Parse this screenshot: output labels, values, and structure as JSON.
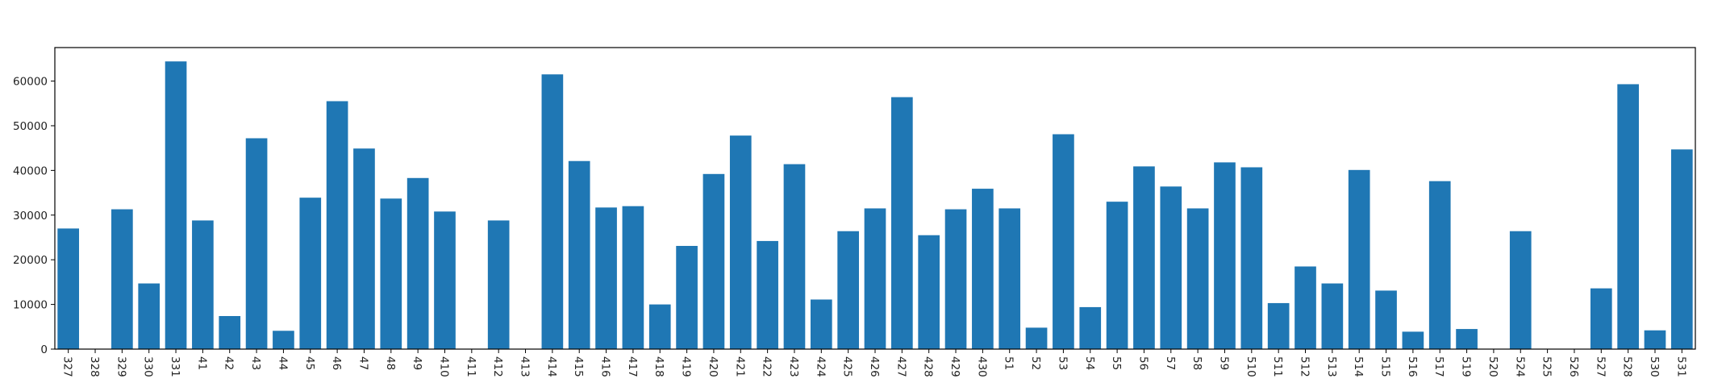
{
  "chart_data": {
    "type": "bar",
    "categories": [
      "327",
      "328",
      "329",
      "330",
      "331",
      "41",
      "42",
      "43",
      "44",
      "45",
      "46",
      "47",
      "48",
      "49",
      "410",
      "411",
      "412",
      "413",
      "414",
      "415",
      "416",
      "417",
      "418",
      "419",
      "420",
      "421",
      "422",
      "423",
      "424",
      "425",
      "426",
      "427",
      "428",
      "429",
      "430",
      "51",
      "52",
      "53",
      "54",
      "55",
      "56",
      "57",
      "58",
      "59",
      "510",
      "511",
      "512",
      "513",
      "514",
      "515",
      "516",
      "517",
      "519",
      "520",
      "524",
      "525",
      "526",
      "527",
      "528",
      "530",
      "531"
    ],
    "values": [
      27000,
      0,
      31300,
      14700,
      64400,
      28800,
      7400,
      47200,
      4100,
      33900,
      55500,
      44900,
      33700,
      38300,
      30800,
      0,
      28800,
      0,
      61500,
      42100,
      31700,
      32000,
      10000,
      23100,
      39200,
      47800,
      24200,
      41400,
      11100,
      26400,
      31500,
      56400,
      25500,
      31300,
      35900,
      31500,
      4800,
      48100,
      9400,
      33000,
      40900,
      36400,
      31500,
      41800,
      40700,
      10300,
      18500,
      14700,
      40100,
      13100,
      3900,
      37600,
      4500,
      0,
      26400,
      0,
      0,
      13600,
      59300,
      4200,
      44700
    ],
    "color": "#1f77b4",
    "yticks": [
      "0",
      "10000",
      "20000",
      "30000",
      "40000",
      "50000",
      "60000"
    ],
    "ylim": [
      0,
      67500
    ],
    "title": "",
    "xlabel": "",
    "ylabel": ""
  }
}
